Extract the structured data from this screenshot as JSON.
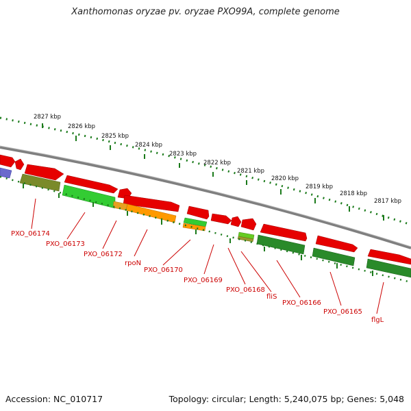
{
  "title": "Xanthomonas oryzae pv. oryzae PXO99A, complete genome",
  "accession": "Accession: NC_010717",
  "topology": "Topology: circular; Length: 5,240,075 bp; Genes: 5,048",
  "scale_labels": [
    "2827 kbp",
    "2826 kbp",
    "2825 kbp",
    "2824 kbp",
    "2823 kbp",
    "2822 kbp",
    "2821 kbp",
    "2820 kbp",
    "2819 kbp",
    "2818 kbp",
    "2817 kbp"
  ],
  "gene_labels": [
    "PXO_06174",
    "PXO_06173",
    "PXO_06172",
    "rpoN",
    "PXO_06170",
    "PXO_06169",
    "PXO_06168",
    "fliS",
    "PXO_06166",
    "PXO_06165",
    "flgL"
  ],
  "colors": {
    "forward_cds": "#ee0000",
    "reverse_cds": "#22aa22",
    "backbone": "#8a8a8a",
    "ticks": "#1a7a1a",
    "label_text": "#cc0000"
  }
}
